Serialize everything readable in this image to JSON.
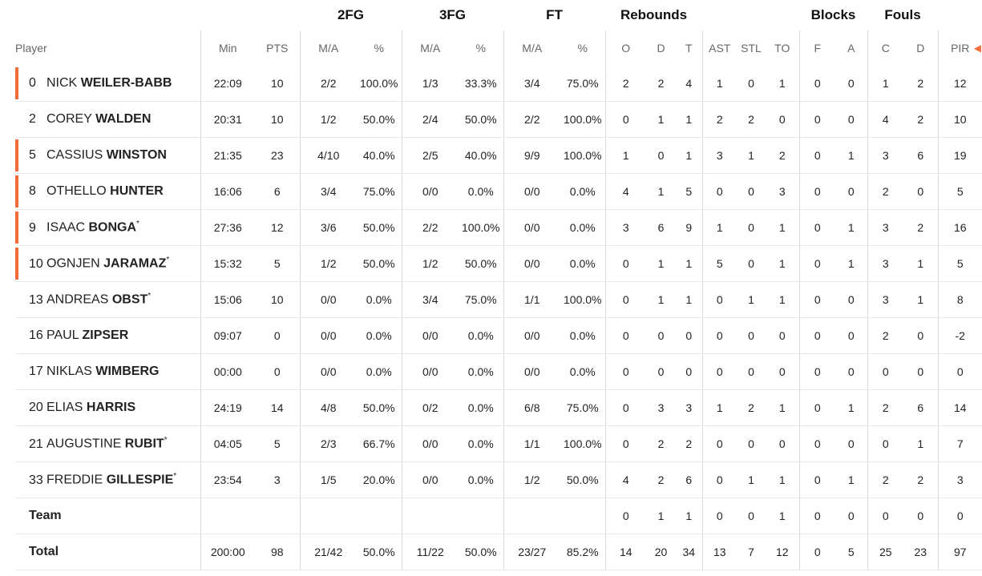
{
  "groups": {
    "fg2": "2FG",
    "fg3": "3FG",
    "ft": "FT",
    "rebounds": "Rebounds",
    "blocks": "Blocks",
    "fouls": "Fouls"
  },
  "headers": {
    "player": "Player",
    "min": "Min",
    "pts": "PTS",
    "fg2_ma": "M/A",
    "fg2_pct": "%",
    "fg3_ma": "M/A",
    "fg3_pct": "%",
    "ft_ma": "M/A",
    "ft_pct": "%",
    "reb_o": "O",
    "reb_d": "D",
    "reb_t": "T",
    "ast": "AST",
    "stl": "STL",
    "to": "TO",
    "blk_f": "F",
    "blk_a": "A",
    "foul_c": "C",
    "foul_d": "D",
    "pir": "PIR"
  },
  "accent_color": "#f26b3a",
  "scroll_icon": "chevron-left-icon",
  "players": [
    {
      "num": "0",
      "first": "NICK",
      "last": "WEILER-BABB",
      "mark": "",
      "starter": true,
      "min": "22:09",
      "pts": "10",
      "fg2_ma": "2/2",
      "fg2_pct": "100.0%",
      "fg3_ma": "1/3",
      "fg3_pct": "33.3%",
      "ft_ma": "3/4",
      "ft_pct": "75.0%",
      "reb_o": "2",
      "reb_d": "2",
      "reb_t": "4",
      "ast": "1",
      "stl": "0",
      "to": "1",
      "blk_f": "0",
      "blk_a": "0",
      "foul_c": "1",
      "foul_d": "2",
      "pir": "12"
    },
    {
      "num": "2",
      "first": "COREY",
      "last": "WALDEN",
      "mark": "",
      "starter": false,
      "min": "20:31",
      "pts": "10",
      "fg2_ma": "1/2",
      "fg2_pct": "50.0%",
      "fg3_ma": "2/4",
      "fg3_pct": "50.0%",
      "ft_ma": "2/2",
      "ft_pct": "100.0%",
      "reb_o": "0",
      "reb_d": "1",
      "reb_t": "1",
      "ast": "2",
      "stl": "2",
      "to": "0",
      "blk_f": "0",
      "blk_a": "0",
      "foul_c": "4",
      "foul_d": "2",
      "pir": "10"
    },
    {
      "num": "5",
      "first": "CASSIUS",
      "last": "WINSTON",
      "mark": "",
      "starter": true,
      "min": "21:35",
      "pts": "23",
      "fg2_ma": "4/10",
      "fg2_pct": "40.0%",
      "fg3_ma": "2/5",
      "fg3_pct": "40.0%",
      "ft_ma": "9/9",
      "ft_pct": "100.0%",
      "reb_o": "1",
      "reb_d": "0",
      "reb_t": "1",
      "ast": "3",
      "stl": "1",
      "to": "2",
      "blk_f": "0",
      "blk_a": "1",
      "foul_c": "3",
      "foul_d": "6",
      "pir": "19"
    },
    {
      "num": "8",
      "first": "OTHELLO",
      "last": "HUNTER",
      "mark": "",
      "starter": true,
      "min": "16:06",
      "pts": "6",
      "fg2_ma": "3/4",
      "fg2_pct": "75.0%",
      "fg3_ma": "0/0",
      "fg3_pct": "0.0%",
      "ft_ma": "0/0",
      "ft_pct": "0.0%",
      "reb_o": "4",
      "reb_d": "1",
      "reb_t": "5",
      "ast": "0",
      "stl": "0",
      "to": "3",
      "blk_f": "0",
      "blk_a": "0",
      "foul_c": "2",
      "foul_d": "0",
      "pir": "5"
    },
    {
      "num": "9",
      "first": "ISAAC",
      "last": "BONGA",
      "mark": "*",
      "starter": true,
      "min": "27:36",
      "pts": "12",
      "fg2_ma": "3/6",
      "fg2_pct": "50.0%",
      "fg3_ma": "2/2",
      "fg3_pct": "100.0%",
      "ft_ma": "0/0",
      "ft_pct": "0.0%",
      "reb_o": "3",
      "reb_d": "6",
      "reb_t": "9",
      "ast": "1",
      "stl": "0",
      "to": "1",
      "blk_f": "0",
      "blk_a": "1",
      "foul_c": "3",
      "foul_d": "2",
      "pir": "16"
    },
    {
      "num": "10",
      "first": "OGNJEN",
      "last": "JARAMAZ",
      "mark": "*",
      "starter": true,
      "min": "15:32",
      "pts": "5",
      "fg2_ma": "1/2",
      "fg2_pct": "50.0%",
      "fg3_ma": "1/2",
      "fg3_pct": "50.0%",
      "ft_ma": "0/0",
      "ft_pct": "0.0%",
      "reb_o": "0",
      "reb_d": "1",
      "reb_t": "1",
      "ast": "5",
      "stl": "0",
      "to": "1",
      "blk_f": "0",
      "blk_a": "1",
      "foul_c": "3",
      "foul_d": "1",
      "pir": "5"
    },
    {
      "num": "13",
      "first": "ANDREAS",
      "last": "OBST",
      "mark": "*",
      "starter": false,
      "min": "15:06",
      "pts": "10",
      "fg2_ma": "0/0",
      "fg2_pct": "0.0%",
      "fg3_ma": "3/4",
      "fg3_pct": "75.0%",
      "ft_ma": "1/1",
      "ft_pct": "100.0%",
      "reb_o": "0",
      "reb_d": "1",
      "reb_t": "1",
      "ast": "0",
      "stl": "1",
      "to": "1",
      "blk_f": "0",
      "blk_a": "0",
      "foul_c": "3",
      "foul_d": "1",
      "pir": "8"
    },
    {
      "num": "16",
      "first": "PAUL",
      "last": "ZIPSER",
      "mark": "",
      "starter": false,
      "min": "09:07",
      "pts": "0",
      "fg2_ma": "0/0",
      "fg2_pct": "0.0%",
      "fg3_ma": "0/0",
      "fg3_pct": "0.0%",
      "ft_ma": "0/0",
      "ft_pct": "0.0%",
      "reb_o": "0",
      "reb_d": "0",
      "reb_t": "0",
      "ast": "0",
      "stl": "0",
      "to": "0",
      "blk_f": "0",
      "blk_a": "0",
      "foul_c": "2",
      "foul_d": "0",
      "pir": "-2"
    },
    {
      "num": "17",
      "first": "NIKLAS",
      "last": "WIMBERG",
      "mark": "",
      "starter": false,
      "min": "00:00",
      "pts": "0",
      "fg2_ma": "0/0",
      "fg2_pct": "0.0%",
      "fg3_ma": "0/0",
      "fg3_pct": "0.0%",
      "ft_ma": "0/0",
      "ft_pct": "0.0%",
      "reb_o": "0",
      "reb_d": "0",
      "reb_t": "0",
      "ast": "0",
      "stl": "0",
      "to": "0",
      "blk_f": "0",
      "blk_a": "0",
      "foul_c": "0",
      "foul_d": "0",
      "pir": "0"
    },
    {
      "num": "20",
      "first": "ELIAS",
      "last": "HARRIS",
      "mark": "",
      "starter": false,
      "min": "24:19",
      "pts": "14",
      "fg2_ma": "4/8",
      "fg2_pct": "50.0%",
      "fg3_ma": "0/2",
      "fg3_pct": "0.0%",
      "ft_ma": "6/8",
      "ft_pct": "75.0%",
      "reb_o": "0",
      "reb_d": "3",
      "reb_t": "3",
      "ast": "1",
      "stl": "2",
      "to": "1",
      "blk_f": "0",
      "blk_a": "1",
      "foul_c": "2",
      "foul_d": "6",
      "pir": "14"
    },
    {
      "num": "21",
      "first": "AUGUSTINE",
      "last": "RUBIT",
      "mark": "*",
      "starter": false,
      "min": "04:05",
      "pts": "5",
      "fg2_ma": "2/3",
      "fg2_pct": "66.7%",
      "fg3_ma": "0/0",
      "fg3_pct": "0.0%",
      "ft_ma": "1/1",
      "ft_pct": "100.0%",
      "reb_o": "0",
      "reb_d": "2",
      "reb_t": "2",
      "ast": "0",
      "stl": "0",
      "to": "0",
      "blk_f": "0",
      "blk_a": "0",
      "foul_c": "0",
      "foul_d": "1",
      "pir": "7"
    },
    {
      "num": "33",
      "first": "FREDDIE",
      "last": "GILLESPIE",
      "mark": "*",
      "starter": false,
      "min": "23:54",
      "pts": "3",
      "fg2_ma": "1/5",
      "fg2_pct": "20.0%",
      "fg3_ma": "0/0",
      "fg3_pct": "0.0%",
      "ft_ma": "1/2",
      "ft_pct": "50.0%",
      "reb_o": "4",
      "reb_d": "2",
      "reb_t": "6",
      "ast": "0",
      "stl": "1",
      "to": "1",
      "blk_f": "0",
      "blk_a": "1",
      "foul_c": "2",
      "foul_d": "2",
      "pir": "3"
    }
  ],
  "team": {
    "label": "Team",
    "min": "",
    "pts": "",
    "fg2_ma": "",
    "fg2_pct": "",
    "fg3_ma": "",
    "fg3_pct": "",
    "ft_ma": "",
    "ft_pct": "",
    "reb_o": "0",
    "reb_d": "1",
    "reb_t": "1",
    "ast": "0",
    "stl": "0",
    "to": "1",
    "blk_f": "0",
    "blk_a": "0",
    "foul_c": "0",
    "foul_d": "0",
    "pir": "0"
  },
  "total": {
    "label": "Total",
    "min": "200:00",
    "pts": "98",
    "fg2_ma": "21/42",
    "fg2_pct": "50.0%",
    "fg3_ma": "11/22",
    "fg3_pct": "50.0%",
    "ft_ma": "23/27",
    "ft_pct": "85.2%",
    "reb_o": "14",
    "reb_d": "20",
    "reb_t": "34",
    "ast": "13",
    "stl": "7",
    "to": "12",
    "blk_f": "0",
    "blk_a": "5",
    "foul_c": "25",
    "foul_d": "23",
    "pir": "97"
  }
}
